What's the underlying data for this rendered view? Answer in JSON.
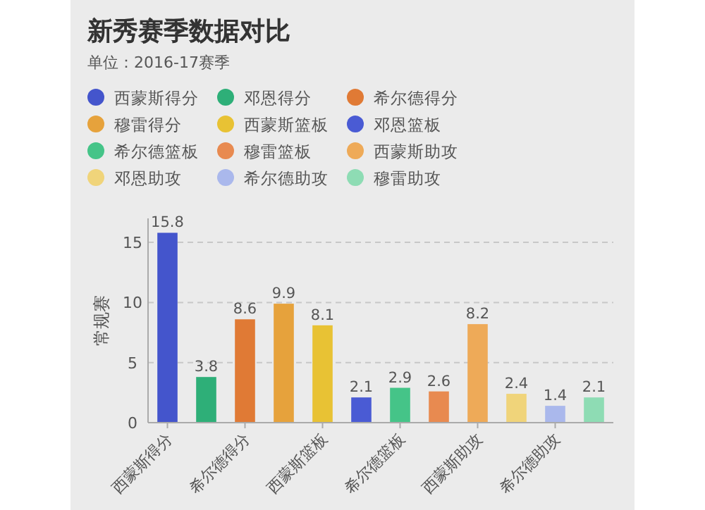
{
  "chart_data": {
    "type": "bar",
    "title": "新秀赛季数据对比",
    "subtitle": "单位：2016-17赛季",
    "ylabel": "常规赛",
    "categories": [
      "西蒙斯得分",
      null,
      "希尔德得分",
      null,
      "西蒙斯篮板",
      null,
      "希尔德篮板",
      null,
      "西蒙斯助攻",
      null,
      "希尔德助攻",
      null
    ],
    "series": [
      {
        "name": "西蒙斯得分",
        "color": "#4455cc",
        "values": [
          15.8,
          null,
          null,
          null,
          null,
          null,
          null,
          null,
          null,
          null,
          null,
          null
        ]
      },
      {
        "name": "邓恩得分",
        "color": "#2eaf78",
        "values": [
          null,
          3.8,
          null,
          null,
          null,
          null,
          null,
          null,
          null,
          null,
          null,
          null
        ]
      },
      {
        "name": "希尔德得分",
        "color": "#e07a35",
        "values": [
          null,
          null,
          8.6,
          null,
          null,
          null,
          null,
          null,
          null,
          null,
          null,
          null
        ]
      },
      {
        "name": "穆雷得分",
        "color": "#e6a23c",
        "values": [
          null,
          null,
          null,
          9.9,
          null,
          null,
          null,
          null,
          null,
          null,
          null,
          null
        ]
      },
      {
        "name": "西蒙斯篮板",
        "color": "#e8c234",
        "values": [
          null,
          null,
          null,
          null,
          8.1,
          null,
          null,
          null,
          null,
          null,
          null,
          null
        ]
      },
      {
        "name": "邓恩篮板",
        "color": "#4a5bd4",
        "values": [
          null,
          null,
          null,
          null,
          null,
          2.1,
          null,
          null,
          null,
          null,
          null,
          null
        ]
      },
      {
        "name": "希尔德篮板",
        "color": "#45c488",
        "values": [
          null,
          null,
          null,
          null,
          null,
          null,
          2.9,
          null,
          null,
          null,
          null,
          null
        ]
      },
      {
        "name": "穆雷篮板",
        "color": "#e88a50",
        "values": [
          null,
          null,
          null,
          null,
          null,
          null,
          null,
          2.6,
          null,
          null,
          null,
          null
        ]
      },
      {
        "name": "西蒙斯助攻",
        "color": "#eeaa58",
        "values": [
          null,
          null,
          null,
          null,
          null,
          null,
          null,
          null,
          8.2,
          null,
          null,
          null
        ]
      },
      {
        "name": "邓恩助攻",
        "color": "#f0d47a",
        "values": [
          null,
          null,
          null,
          null,
          null,
          null,
          null,
          null,
          null,
          2.4,
          null,
          null
        ]
      },
      {
        "name": "希尔德助攻",
        "color": "#aab8ec",
        "values": [
          null,
          null,
          null,
          null,
          null,
          null,
          null,
          null,
          null,
          null,
          1.4,
          null
        ]
      },
      {
        "name": "穆雷助攻",
        "color": "#8edcb4",
        "values": [
          null,
          null,
          null,
          null,
          null,
          null,
          null,
          null,
          null,
          null,
          null,
          2.1
        ]
      }
    ],
    "ylim": [
      0,
      17
    ],
    "yticks": [
      0,
      5,
      10,
      15
    ],
    "grid": "y",
    "legend": "top left",
    "data_labels": true
  }
}
